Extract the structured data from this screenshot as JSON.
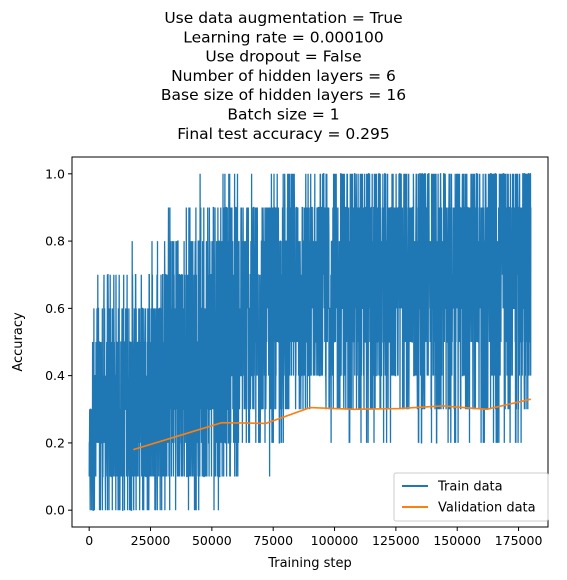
{
  "chart_data": {
    "type": "line",
    "title_lines": [
      "Use data augmentation = True",
      "Learning rate = 0.000100",
      "Use dropout = False",
      "Number of hidden layers = 6",
      "Base size of hidden layers = 16",
      "Batch size = 1",
      "Final test accuracy = 0.295"
    ],
    "xlabel": "Training step",
    "ylabel": "Accuracy",
    "xlim": [
      -7000,
      187000
    ],
    "ylim": [
      -0.05,
      1.05
    ],
    "xticks": [
      0,
      25000,
      50000,
      75000,
      100000,
      125000,
      150000,
      175000
    ],
    "xtick_labels": [
      "0",
      "25000",
      "50000",
      "75000",
      "100000",
      "125000",
      "150000",
      "175000"
    ],
    "yticks": [
      0.0,
      0.2,
      0.4,
      0.6,
      0.8,
      1.0
    ],
    "ytick_labels": [
      "0.0",
      "0.2",
      "0.4",
      "0.6",
      "0.8",
      "1.0"
    ],
    "legend_position": "lower-right",
    "grid": false,
    "series": [
      {
        "name": "Train data",
        "color": "#1f77b4",
        "x_range": [
          0,
          180000
        ],
        "value_levels": [
          0.0,
          0.1,
          0.2,
          0.3,
          0.4,
          0.5,
          0.6,
          0.7,
          0.8,
          0.9,
          1.0
        ],
        "note_range_by_step": [
          {
            "x": 0,
            "min": 0.0,
            "max": 0.3
          },
          {
            "x": 2000,
            "min": 0.0,
            "max": 0.7
          },
          {
            "x": 20000,
            "min": 0.0,
            "max": 0.8
          },
          {
            "x": 50000,
            "min": 0.0,
            "max": 1.0
          },
          {
            "x": 60000,
            "min": 0.1,
            "max": 1.0
          },
          {
            "x": 90000,
            "min": 0.2,
            "max": 1.0
          },
          {
            "x": 180000,
            "min": 0.2,
            "max": 1.0
          }
        ]
      },
      {
        "name": "Validation data",
        "color": "#ff7f0e",
        "x": [
          18000,
          36000,
          54000,
          72000,
          90000,
          108000,
          126000,
          144000,
          162000,
          180000
        ],
        "y": [
          0.18,
          0.22,
          0.26,
          0.258,
          0.305,
          0.3,
          0.302,
          0.31,
          0.3,
          0.33
        ]
      }
    ]
  }
}
